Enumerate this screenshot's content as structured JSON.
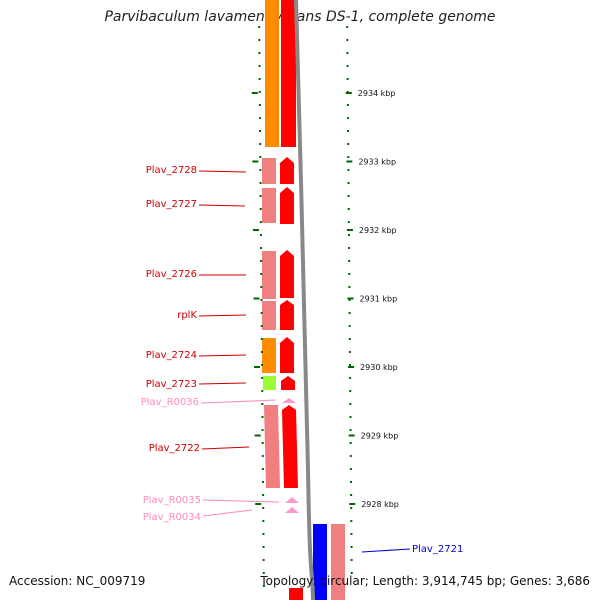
{
  "title": "Parvibaculum lavamentivorans DS-1, complete genome",
  "accession_text": "Accession: NC_009719",
  "topology_text": "Topology: circular; Length: 3,914,745 bp; Genes: 3,686",
  "colors": {
    "orange": "#ff8c00",
    "red": "#ff0000",
    "salmon": "#f08080",
    "light_green": "#99ff33",
    "pink": "#ff99cc",
    "blue": "#0000ff",
    "tick_green": "#006600",
    "backbone": "#888888"
  },
  "scale": {
    "unit": "kbp",
    "ticks": [
      {
        "label": "2934 kbp",
        "kbp": 2934
      },
      {
        "label": "2933 kbp",
        "kbp": 2933
      },
      {
        "label": "2932 kbp",
        "kbp": 2932
      },
      {
        "label": "2931 kbp",
        "kbp": 2931
      },
      {
        "label": "2930 kbp",
        "kbp": 2930
      },
      {
        "label": "2929 kbp",
        "kbp": 2929
      },
      {
        "label": "2928 kbp",
        "kbp": 2928
      }
    ]
  },
  "gene_labels": [
    {
      "text": "Plav_2728",
      "color": "#cc0000"
    },
    {
      "text": "Plav_2727",
      "color": "#cc0000"
    },
    {
      "text": "Plav_2726",
      "color": "#cc0000"
    },
    {
      "text": "rplK",
      "color": "#cc0000"
    },
    {
      "text": "Plav_2724",
      "color": "#cc0000"
    },
    {
      "text": "Plav_2723",
      "color": "#cc0000"
    },
    {
      "text": "Plav_R0036",
      "color": "#ff88bb"
    },
    {
      "text": "Plav_2722",
      "color": "#cc0000"
    },
    {
      "text": "Plav_R0035",
      "color": "#ff88bb"
    },
    {
      "text": "Plav_R0034",
      "color": "#ff88bb"
    },
    {
      "text": "Plav_2721",
      "color": "#0000cc"
    }
  ]
}
